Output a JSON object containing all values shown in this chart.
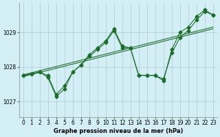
{
  "title": "Graphe pression niveau de la mer (hPa)",
  "background_color": "#d4eef5",
  "grid_color": "#a8cccc",
  "line_color": "#1a6e2a",
  "xlim": [
    -0.5,
    23.5
  ],
  "ylim": [
    1026.55,
    1029.85
  ],
  "xticks": [
    0,
    1,
    2,
    3,
    4,
    5,
    6,
    7,
    8,
    9,
    10,
    11,
    12,
    13,
    14,
    15,
    16,
    17,
    18,
    19,
    20,
    21,
    22,
    23
  ],
  "yticks": [
    1027,
    1028,
    1029
  ],
  "series1": [
    1027.75,
    1027.8,
    1027.85,
    1027.75,
    1027.2,
    1027.45,
    1027.85,
    1028.05,
    1028.3,
    1028.5,
    1028.7,
    1029.05,
    1028.55,
    1028.55,
    1027.75,
    1027.75,
    1027.75,
    1027.65,
    1028.4,
    1028.85,
    1029.05,
    1029.35,
    1029.6,
    1029.5
  ],
  "series2": [
    1027.75,
    1027.8,
    1027.85,
    1027.7,
    1027.15,
    1027.35,
    1027.85,
    1028.05,
    1028.35,
    1028.55,
    1028.75,
    1029.1,
    1028.6,
    1028.55,
    1027.75,
    1027.75,
    1027.75,
    1027.6,
    1028.5,
    1029.0,
    1029.15,
    1029.45,
    1029.65,
    1029.5
  ],
  "trend": [
    1027.72,
    1027.78,
    1027.84,
    1027.9,
    1027.96,
    1028.02,
    1028.08,
    1028.14,
    1028.2,
    1028.26,
    1028.32,
    1028.38,
    1028.44,
    1028.5,
    1028.56,
    1028.62,
    1028.68,
    1028.74,
    1028.8,
    1028.86,
    1028.92,
    1028.98,
    1029.04,
    1029.1
  ],
  "marker": "D",
  "markersize": 2.5,
  "linewidth": 0.8,
  "xlabel_fontsize": 6.0,
  "tick_fontsize": 5.5
}
